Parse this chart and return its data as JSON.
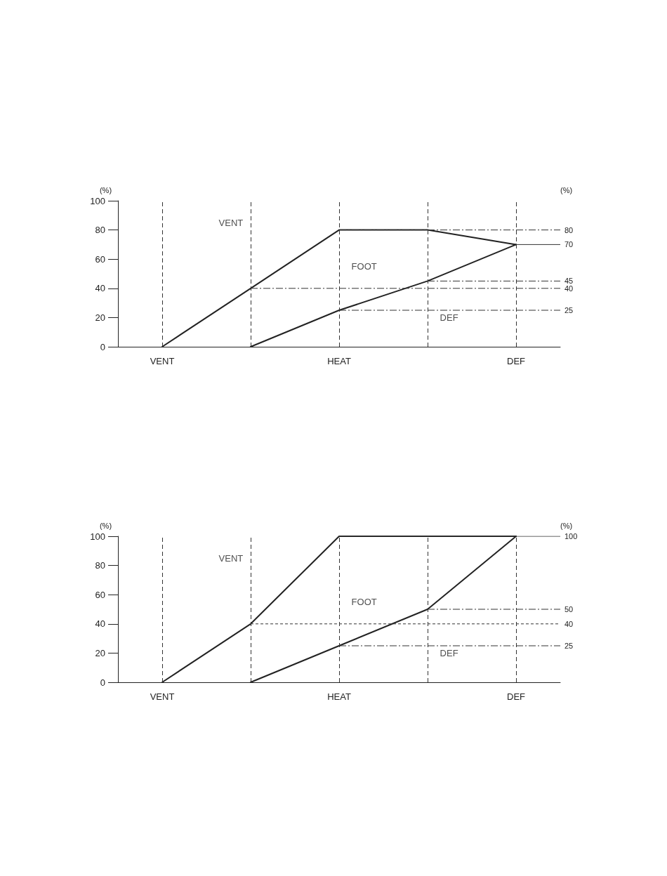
{
  "chart_data": [
    {
      "type": "line",
      "categories": [
        "VENT",
        null,
        "HEAT",
        null,
        "DEF"
      ],
      "ylabel": "(%)",
      "y2label": "(%)",
      "ylim": [
        0,
        100
      ],
      "yticks": [
        0,
        20,
        40,
        60,
        80,
        100
      ],
      "y2lim": [
        0,
        100
      ],
      "y2ticks": [
        25,
        40,
        45,
        70,
        80
      ],
      "grid": "x",
      "marker": "none",
      "line_style": "solid",
      "series": [
        {
          "color": "#222222",
          "values": [
            0,
            40,
            80,
            80,
            70
          ]
        },
        {
          "color": "#222222",
          "values": [
            null,
            0,
            25,
            45,
            70
          ]
        }
      ],
      "ref_lines": [
        {
          "axis": "y",
          "value": 80,
          "line_style": "dashed"
        },
        {
          "axis": "y",
          "value": 70,
          "line_style": "solid"
        },
        {
          "axis": "y",
          "value": 45,
          "line_style": "dashed"
        },
        {
          "axis": "y",
          "value": 40,
          "line_style": "dashed"
        },
        {
          "axis": "y",
          "value": 25,
          "line_style": "dashed"
        }
      ],
      "annotations": [
        "VENT",
        "FOOT",
        "DEF"
      ]
    },
    {
      "type": "line",
      "categories": [
        "VENT",
        null,
        "HEAT",
        null,
        "DEF"
      ],
      "ylabel": "(%)",
      "y2label": "(%)",
      "ylim": [
        0,
        100
      ],
      "yticks": [
        0,
        20,
        40,
        60,
        80,
        100
      ],
      "y2lim": [
        0,
        100
      ],
      "y2ticks": [
        25,
        40,
        50,
        100
      ],
      "grid": "x",
      "marker": "none",
      "line_style": "solid",
      "series": [
        {
          "color": "#222222",
          "values": [
            0,
            40,
            100,
            100,
            100
          ]
        },
        {
          "color": "#222222",
          "values": [
            null,
            0,
            25,
            50,
            100
          ]
        }
      ],
      "ref_lines": [
        {
          "axis": "y",
          "value": 100,
          "line_style": "solid"
        },
        {
          "axis": "y",
          "value": 50,
          "line_style": "dashed"
        },
        {
          "axis": "y",
          "value": 40,
          "line_style": "dotted"
        },
        {
          "axis": "y",
          "value": 25,
          "line_style": "dashed"
        }
      ],
      "annotations": [
        "VENT",
        "FOOT",
        "DEF"
      ]
    }
  ]
}
